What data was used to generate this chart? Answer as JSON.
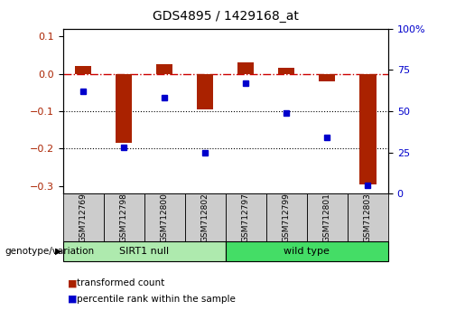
{
  "title": "GDS4895 / 1429168_at",
  "samples": [
    "GSM712769",
    "GSM712798",
    "GSM712800",
    "GSM712802",
    "GSM712797",
    "GSM712799",
    "GSM712801",
    "GSM712803"
  ],
  "red_bars": [
    0.02,
    -0.185,
    0.025,
    -0.095,
    0.03,
    0.015,
    -0.02,
    -0.295
  ],
  "blue_dots_right_axis": [
    62,
    28,
    58,
    25,
    67,
    49,
    34,
    5
  ],
  "groups": [
    {
      "label": "SIRT1 null",
      "start": 0,
      "end": 4
    },
    {
      "label": "wild type",
      "start": 4,
      "end": 8
    }
  ],
  "group_colors": [
    "#AEEAAE",
    "#44DD66"
  ],
  "ylim_left": [
    -0.32,
    0.12
  ],
  "ylim_right": [
    0,
    100
  ],
  "yticks_left": [
    0.1,
    0.0,
    -0.1,
    -0.2,
    -0.3
  ],
  "yticks_right": [
    100,
    75,
    50,
    25,
    0
  ],
  "bar_color": "#AA2200",
  "dot_color": "#0000CC",
  "hline_color": "#CC0000",
  "dotted_lines": [
    -0.1,
    -0.2
  ],
  "legend_items": [
    "transformed count",
    "percentile rank within the sample"
  ],
  "group_label": "genotype/variation"
}
